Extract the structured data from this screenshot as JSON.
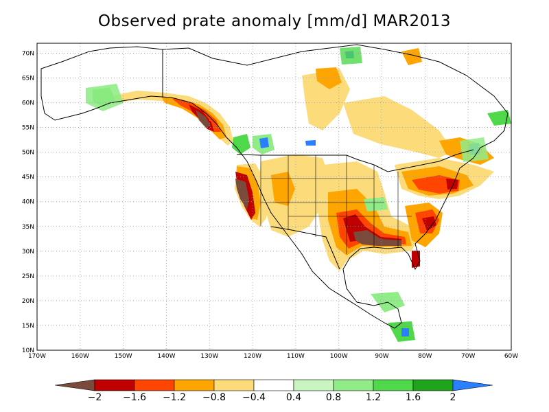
{
  "title": "Observed prate anomaly [mm/d] MAR2013",
  "map": {
    "lon_range": [
      -170,
      -60
    ],
    "lat_range": [
      10,
      72
    ],
    "lat_ticks": [
      {
        "value": 70,
        "label": "70N"
      },
      {
        "value": 65,
        "label": "65N"
      },
      {
        "value": 60,
        "label": "60N"
      },
      {
        "value": 55,
        "label": "55N"
      },
      {
        "value": 50,
        "label": "50N"
      },
      {
        "value": 45,
        "label": "45N"
      },
      {
        "value": 40,
        "label": "40N"
      },
      {
        "value": 35,
        "label": "35N"
      },
      {
        "value": 30,
        "label": "30N"
      },
      {
        "value": 25,
        "label": "25N"
      },
      {
        "value": 20,
        "label": "20N"
      },
      {
        "value": 15,
        "label": "15N"
      },
      {
        "value": 10,
        "label": "10N"
      }
    ],
    "lon_ticks": [
      {
        "value": -170,
        "label": "170W"
      },
      {
        "value": -160,
        "label": "160W"
      },
      {
        "value": -150,
        "label": "150W"
      },
      {
        "value": -140,
        "label": "140W"
      },
      {
        "value": -130,
        "label": "130W"
      },
      {
        "value": -120,
        "label": "120W"
      },
      {
        "value": -110,
        "label": "110W"
      },
      {
        "value": -100,
        "label": "100W"
      },
      {
        "value": -90,
        "label": "90W"
      },
      {
        "value": -80,
        "label": "80W"
      },
      {
        "value": -70,
        "label": "70W"
      },
      {
        "value": -60,
        "label": "60W"
      }
    ],
    "grid": "dotted",
    "colors": {
      "lt_-2": "#7a4a3a",
      "-2_-1.6": "#c00000",
      "-1.6_-1.2": "#ff4500",
      "-1.2_-0.8": "#ffa500",
      "-0.8_-0.4": "#fbdb7a",
      "0.4_0.8": "#c8f5c0",
      "0.8_1.2": "#90ec86",
      "1.2_1.6": "#4ed84a",
      "1.6_2": "#1fa51c",
      "gt_2": "#2a7fff"
    }
  },
  "colorbar": {
    "labels": [
      "−2",
      "−1.6",
      "−1.2",
      "−0.8",
      "−0.4",
      "0.4",
      "0.8",
      "1.2",
      "1.6",
      "2"
    ],
    "segments": [
      "#c00000",
      "#ff4500",
      "#ffa500",
      "#fbdb7a",
      "#ffffff",
      "#c8f5c0",
      "#90ec86",
      "#4ed84a",
      "#1fa51c"
    ],
    "low_color": "#7a4a3a",
    "high_color": "#2a7fff"
  }
}
